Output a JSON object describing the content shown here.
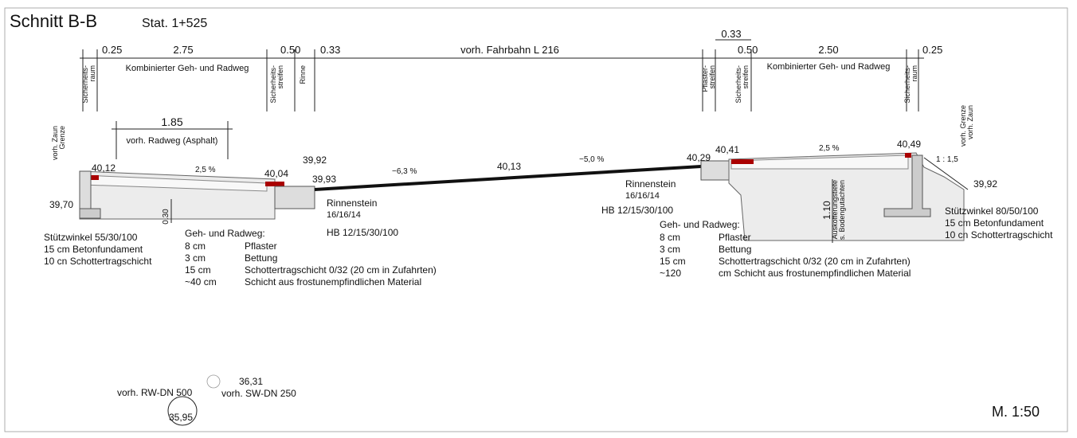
{
  "header": {
    "title": "Schnitt B-B",
    "station": "Stat. 1+525"
  },
  "scale": "M. 1:50",
  "top_dimensions": [
    "0.25",
    "2.75",
    "0.50",
    "0.33",
    "vorh. Fahrbahn L 216",
    "0.33",
    "0.50",
    "2.50",
    "0.25"
  ],
  "top_labels": [
    "Kombinierter Geh- und Radweg",
    "Kombinierter Geh- und Radweg"
  ],
  "vertical_labels": [
    [
      "Sicherheits-",
      "raum"
    ],
    [
      "Sicherheits-",
      "streifen"
    ],
    [
      "Rinne"
    ],
    [
      "Pflaster-",
      "streifen"
    ],
    [
      "Sicherheits-",
      "streifen"
    ],
    [
      "Sicherheits-",
      "raum"
    ],
    [
      "vorh. Zaun",
      "Grenze"
    ],
    [
      "vorh. Grenze",
      "vorh. Zaun"
    ],
    [
      "Auskofferungstiefe",
      "s. Bodengutachten"
    ]
  ],
  "radweg": {
    "width": "1.85",
    "label": "vorh. Radweg (Asphalt)"
  },
  "elevations": [
    "40,12",
    "40,04",
    "39,92",
    "39,93",
    "40,13",
    "40,29",
    "40,41",
    "40,49",
    "39,70",
    "39,92"
  ],
  "slopes": [
    "2,5 %",
    "−6,3 %",
    "−5,0 %",
    "2,5 %",
    "1 : 1,5"
  ],
  "depths": [
    "0.30",
    "1.10"
  ],
  "left_curb": {
    "name": "Rinnenstein",
    "size": "16/16/14",
    "board": "HB 12/15/30/100"
  },
  "right_curb": {
    "name": "Rinnenstein",
    "size": "16/16/14",
    "board": "HB 12/15/30/100"
  },
  "left_wall": [
    "Stützwinkel 55/30/100",
    "15 cm Betonfundament",
    "10 cn Schottertragschicht"
  ],
  "right_wall": [
    "Stützwinkel 80/50/100",
    "15 cm Betonfundament",
    "10 cn Schottertragschicht"
  ],
  "left_layers": {
    "title": "Geh- und Radweg:",
    "rows": [
      [
        "8 cm",
        "Pflaster"
      ],
      [
        "3 cm",
        "Bettung"
      ],
      [
        "15 cm",
        "Schottertragschicht 0/32 (20 cm in Zufahrten)"
      ],
      [
        "~40 cm",
        "Schicht aus frostunempfindlichen Material"
      ]
    ]
  },
  "right_layers": {
    "title": "Geh- und Radweg:",
    "rows": [
      [
        "8 cm",
        "Pflaster"
      ],
      [
        "3 cm",
        "Bettung"
      ],
      [
        "15 cm",
        "Schottertragschicht 0/32 (20 cm in Zufahrten)"
      ],
      [
        "~120",
        "cm Schicht aus frostunempfindlichen Material"
      ]
    ]
  },
  "pipes": {
    "rw": "vorh. RW-DN 500",
    "rw_level": "35,95",
    "sw_level": "36,31",
    "sw": "vorh. SW-DN 250"
  }
}
